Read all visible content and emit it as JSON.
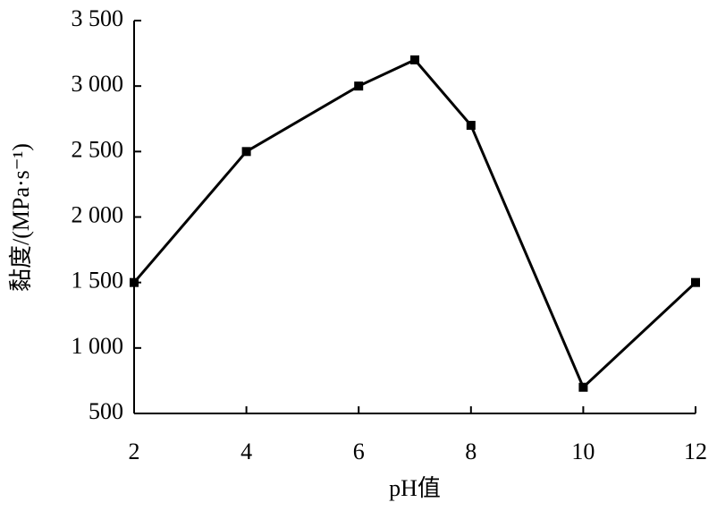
{
  "chart_data": {
    "type": "line",
    "x_label": "pH值",
    "y_label": "黏度/(MPa·s⁻¹)",
    "x": [
      2,
      4,
      6,
      7,
      8,
      10,
      12
    ],
    "series": [
      {
        "color": "#000000",
        "values": [
          1500,
          2500,
          3000,
          3200,
          2700,
          700,
          1500
        ]
      }
    ],
    "xlim": [
      2,
      12
    ],
    "xticks": [
      2,
      4,
      6,
      8,
      10,
      12
    ],
    "ylim": [
      500,
      3500
    ],
    "yticks": [
      500,
      {
        "value": 1000,
        "label": "1 000"
      },
      {
        "value": 1500,
        "label": "1 500"
      },
      {
        "value": 2000,
        "label": "2 000"
      },
      {
        "value": 2500,
        "label": "2 500"
      },
      {
        "value": 3000,
        "label": "3 000"
      },
      {
        "value": 3500,
        "label": "3 500"
      }
    ],
    "grid": false
  }
}
